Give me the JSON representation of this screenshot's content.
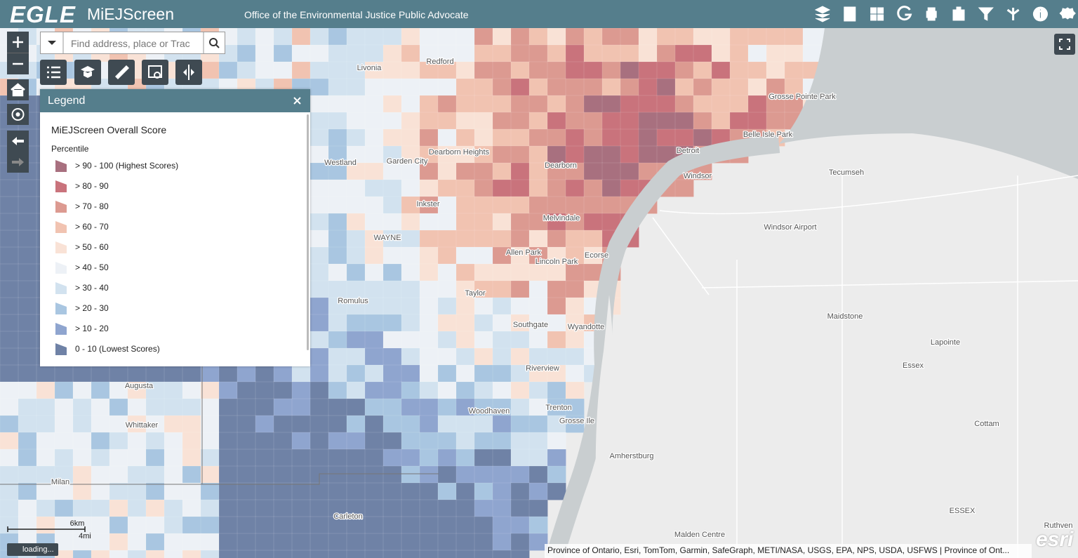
{
  "header": {
    "logo": "EGLE",
    "app_title": "MiEJScreen",
    "subtitle": "Office of the Environmental Justice Public Advocate"
  },
  "search": {
    "placeholder": "Find address, place or Trac"
  },
  "legend": {
    "title": "Legend",
    "layer": "MiEJScreen Overall Score",
    "field": "Percentile",
    "items": [
      {
        "label": "> 90 - 100 (Highest Scores)",
        "color": "#a8707f"
      },
      {
        "label": "> 80 - 90",
        "color": "#c9737c"
      },
      {
        "label": "> 70 - 80",
        "color": "#dc9a91"
      },
      {
        "label": "> 60 - 70",
        "color": "#f1c3b1"
      },
      {
        "label": "> 50 - 60",
        "color": "#f9e2d6"
      },
      {
        "label": "> 40 - 50",
        "color": "#edf1f6"
      },
      {
        "label": "> 30 - 40",
        "color": "#d2e2ef"
      },
      {
        "label": "> 20 - 30",
        "color": "#a9c6e1"
      },
      {
        "label": "> 10 - 20",
        "color": "#8fa5cf"
      },
      {
        "label": "0 - 10 (Lowest Scores)",
        "color": "#6f82a6"
      }
    ]
  },
  "map": {
    "labels": [
      "Livonia",
      "Redford",
      "Westland",
      "Garden City",
      "Dearborn Heights",
      "Dearborn",
      "Detroit",
      "Windsor",
      "Tecumseh",
      "Inkster",
      "WAYNE",
      "Melvindale",
      "Allen Park",
      "Lincoln Park",
      "Ecorse",
      "Romulus",
      "Taylor",
      "Southgate",
      "Wyandotte",
      "Riverview",
      "Trenton",
      "Grosse Ile",
      "Woodhaven",
      "Augusta",
      "Whittaker",
      "Milan",
      "Carleton",
      "Amherstburg",
      "Maidstone",
      "Lapointe",
      "Essex",
      "Cottam",
      "Windsor Airport",
      "Grosse Pointe Park",
      "Belle Isle Park",
      "Malden Centre",
      "Ruthven",
      "ESSEX"
    ],
    "scale": {
      "km": "6km",
      "mi": "4mi"
    },
    "attribution": "Province of Ontario, Esri, TomTom, Garmin, SafeGraph, METI/NASA, USGS, EPA, NPS, USDA, USFWS | Province of Ont...",
    "status": "loading...",
    "esri": "esri"
  }
}
